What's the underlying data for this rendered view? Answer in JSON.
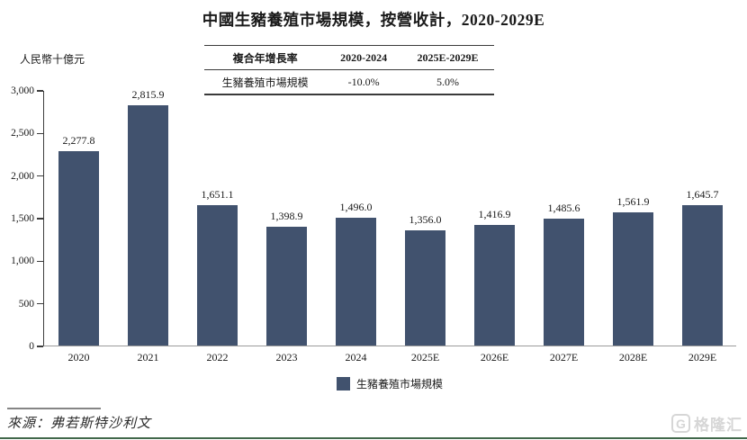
{
  "title": "中國生豬養殖市場規模，按營收計，2020-2029E",
  "y_axis_unit": "人民幣十億元",
  "cagr_table": {
    "header": [
      "複合年增長率",
      "2020-2024",
      "2025E-2029E"
    ],
    "row": [
      "生豬養殖市場規模",
      "-10.0%",
      "5.0%"
    ]
  },
  "chart_data": {
    "type": "bar",
    "title": "中國生豬養殖市場規模，按營收計，2020-2029E",
    "ylabel": "人民幣十億元",
    "categories": [
      "2020",
      "2021",
      "2022",
      "2023",
      "2024",
      "2025E",
      "2026E",
      "2027E",
      "2028E",
      "2029E"
    ],
    "values": [
      2277.8,
      2815.9,
      1651.1,
      1398.9,
      1496.0,
      1356.0,
      1416.9,
      1485.6,
      1561.9,
      1645.7
    ],
    "value_labels": [
      "2,277.8",
      "2,815.9",
      "1,651.1",
      "1,398.9",
      "1,496.0",
      "1,356.0",
      "1,416.9",
      "1,485.6",
      "1,561.9",
      "1,645.7"
    ],
    "ylim": [
      0,
      3000
    ],
    "ytick_step": 500,
    "ytick_labels": [
      "0",
      "500",
      "1,000",
      "1,500",
      "2,000",
      "2,500",
      "3,000"
    ],
    "grid": false,
    "legend_position": "bottom",
    "legend": [
      "生豬養殖市場規模"
    ],
    "bar_color": "#41526E"
  },
  "legend_label": "生豬養殖市場規模",
  "source": "來源：弗若斯特沙利文",
  "watermark": {
    "icon_letter": "G",
    "text": "格隆汇"
  },
  "colors": {
    "bar": "#41526E",
    "axis": "#3D3D3D",
    "x_axis": "#9B9B9B",
    "bottom_line": "#41684B",
    "watermark": "#D6D6D6"
  }
}
